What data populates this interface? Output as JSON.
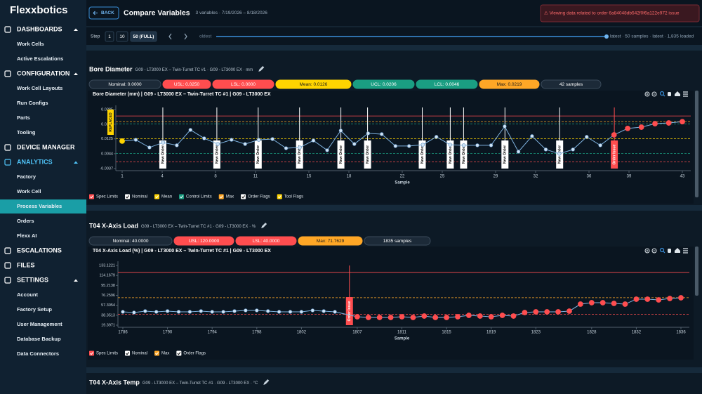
{
  "sidebar": {
    "logo": "Flexxbotics",
    "sections": [
      {
        "label": "DASHBOARDS",
        "items": [
          "Work Cells",
          "Active Escalations"
        ]
      },
      {
        "label": "CONFIGURATION",
        "items": [
          "Work Cell Layouts",
          "Run Configs",
          "Parts",
          "Tooling"
        ]
      },
      {
        "label": "DEVICE MANAGER"
      },
      {
        "label": "ANALYTICS",
        "color": "#4fc3f7",
        "items": [
          "Factory",
          "Work Cell",
          "Process Variables",
          "Orders",
          "Flexx AI"
        ],
        "active_index": 2
      },
      {
        "label": "ESCALATIONS"
      },
      {
        "label": "FILES"
      },
      {
        "label": "SETTINGS",
        "items": [
          "Account",
          "Factory Setup",
          "User Management",
          "Database Backup",
          "Data Connectors"
        ]
      }
    ]
  },
  "header": {
    "back": "BACK",
    "title": "Compare Variables",
    "subtitle": "3 variables · 7/19/2026 – 8/18/2026",
    "alert": "⚠ Viewing data related to order 6a84048db542f0f6a122e972 issue"
  },
  "controls": {
    "step_label": "Step",
    "step_options": [
      "1",
      "10",
      "50 (FULL)"
    ],
    "active_step": 2,
    "range_start": "oldest",
    "range_end": "latest · 50 samples · latest · 1,835 loaded"
  },
  "panels": [
    {
      "title": "Bore Diameter",
      "subtitle": "G09 - LT3000 EX – Twin-Turret TC #1 · G09 - LT3000 EX · mm",
      "pills": [
        {
          "label": "Nominal: 0.0000",
          "color": "#1c2a38"
        },
        {
          "label": "USL: 0.0250",
          "color": "#ff4d4f"
        },
        {
          "label": "LSL: 0.0000",
          "color": "#ff4d4f"
        },
        {
          "label": "Mean: 0.0126",
          "color": "#ffd400"
        },
        {
          "label": "UCL: 0.0206",
          "color": "#1a9e82"
        },
        {
          "label": "LCL: 0.0046",
          "color": "#1a9e82"
        },
        {
          "label": "Max: 0.0219",
          "color": "#ffa726"
        },
        {
          "label": "42 samples",
          "color": "#1c2a38"
        }
      ]
    },
    {
      "title": "T04 X-Axis Load",
      "subtitle": "G09 - LT3000 EX – Twin-Turret TC #1 · G09 - LT3000 EX · %",
      "pills": [
        {
          "label": "Nominal: 40.0000",
          "color": "#1c2a38"
        },
        {
          "label": "USL: 120.0000",
          "color": "#ff4d4f"
        },
        {
          "label": "LSL: 40.0000",
          "color": "#ff4d4f"
        },
        {
          "label": "Max: 71.7629",
          "color": "#ffa726"
        },
        {
          "label": "1835 samples",
          "color": "#1c2a38"
        }
      ]
    },
    {
      "title": "T04 X-Axis Temp",
      "subtitle": "G09 - LT3000 EX – Twin-Turret TC #1 · G09 - LT3000 EX · °C"
    }
  ],
  "chart_data": [
    {
      "type": "line",
      "title": "Bore Diameter (mm) | G09 - LT3000 EX – Twin-Turret TC #1 | G09 - LT3000 EX",
      "xlabel": "Sample",
      "xlim": [
        1,
        43
      ],
      "xticks": [
        1,
        4,
        8,
        11,
        15,
        18,
        22,
        25,
        29,
        32,
        36,
        39,
        43
      ],
      "ylim": [
        -0.0037,
        0.0285
      ],
      "yticks": [
        0.0285,
        0.0205,
        0.0125,
        0.0044,
        -0.0037
      ],
      "x": [
        1,
        2.02,
        3.05,
        4.07,
        5.1,
        6.12,
        7.15,
        8.17,
        9.2,
        10.22,
        11.24,
        12.27,
        13.29,
        14.32,
        15.34,
        16.37,
        17.39,
        18.41,
        19.44,
        20.46,
        21.49,
        22.51,
        23.54,
        24.56,
        25.59,
        26.61,
        27.63,
        28.66,
        29.68,
        30.71,
        31.73,
        32.76,
        33.78,
        34.8,
        35.83,
        36.85,
        37.88,
        38.9,
        39.93,
        40.95,
        41.98,
        43
      ],
      "series": [
        {
          "color": "#7fb3e0",
          "values": [
            0.0113,
            0.012,
            0.0078,
            0.0105,
            0.009,
            0.0174,
            0.0128,
            0.0097,
            0.012,
            0.0097,
            0.012,
            0.0124,
            0.0074,
            0.0078,
            0.0116,
            0.0063,
            0.017,
            0.0097,
            0.0155,
            0.0151,
            0.0086,
            0.0086,
            0.0093,
            0.0136,
            0.0093,
            0.009,
            0.009,
            0.009,
            0.0193,
            0.0055,
            0.014,
            0.0067,
            0.0044,
            0.0067,
            0.0136,
            0.009,
            0.0147,
            0.0182,
            0.0189,
            0.0208,
            0.0212,
            0.0219
          ],
          "point_colors": [
            "#ffd400",
            "#cfe3f5",
            "#cfe3f5",
            "#cfe3f5",
            "#cfe3f5",
            "#cfe3f5",
            "#cfe3f5",
            "#cfe3f5",
            "#cfe3f5",
            "#cfe3f5",
            "#cfe3f5",
            "#cfe3f5",
            "#cfe3f5",
            "#cfe3f5",
            "#cfe3f5",
            "#cfe3f5",
            "#cfe3f5",
            "#cfe3f5",
            "#cfe3f5",
            "#cfe3f5",
            "#cfe3f5",
            "#cfe3f5",
            "#cfe3f5",
            "#cfe3f5",
            "#cfe3f5",
            "#cfe3f5",
            "#cfe3f5",
            "#cfe3f5",
            "#cfe3f5",
            "#cfe3f5",
            "#cfe3f5",
            "#cfe3f5",
            "#cfe3f5",
            "#cfe3f5",
            "#cfe3f5",
            "#cfe3f5",
            "#ff4d4f",
            "#ff4d4f",
            "#ff4d4f",
            "#ff4d4f",
            "#ff4d4f",
            "#ff4d4f"
          ]
        }
      ],
      "reference_lines": [
        {
          "value": 0.025,
          "color": "#ff4d4f",
          "dashed": false
        },
        {
          "value": 0.0,
          "color": "#ff4d4f",
          "dashed": true
        },
        {
          "value": 0.0206,
          "color": "#1a9e82",
          "dashed": true
        },
        {
          "value": 0.0046,
          "color": "#1a9e82",
          "dashed": true
        },
        {
          "value": 0.0126,
          "color": "#ffd400",
          "dashed": true
        },
        {
          "value": 0.0219,
          "color": "#ffa726",
          "dashed": true
        }
      ],
      "flags": [
        {
          "x": 4.05,
          "label": "New Order",
          "color": "#ffffff"
        },
        {
          "x": 8.1,
          "label": "New Order",
          "color": "#ffffff"
        },
        {
          "x": 11.2,
          "label": "New Order",
          "color": "#ffffff"
        },
        {
          "x": 14.3,
          "label": "New Order",
          "color": "#ffffff"
        },
        {
          "x": 17.4,
          "label": "New Order",
          "color": "#ffffff"
        },
        {
          "x": 19.4,
          "label": "New Order",
          "color": "#ffffff"
        },
        {
          "x": 23.5,
          "label": "New Order",
          "color": "#ffffff"
        },
        {
          "x": 25.6,
          "label": "New Order",
          "color": "#ffffff"
        },
        {
          "x": 26.6,
          "label": "New Order",
          "color": "#ffffff"
        },
        {
          "x": 29.7,
          "label": "New Order",
          "color": "#ffffff"
        },
        {
          "x": 33.8,
          "label": "New Order",
          "color": "#ffffff"
        },
        {
          "x": 37.9,
          "label": "Order Issue",
          "color": "#ff4d4f"
        }
      ],
      "tool_flag": {
        "label": "REPLACED",
        "color": "#ffd400"
      },
      "legend": [
        {
          "label": "Spec Limits",
          "color": "#ff4d4f"
        },
        {
          "label": "Nominal",
          "color": "#ffffff"
        },
        {
          "label": "Mean",
          "color": "#ffd400"
        },
        {
          "label": "Control Limits",
          "color": "#1a9e82"
        },
        {
          "label": "Max",
          "color": "#ffa726"
        },
        {
          "label": "Order Flags",
          "color": "#ffffff"
        },
        {
          "label": "Tool Flags",
          "color": "#ffd400"
        }
      ]
    },
    {
      "type": "line",
      "title": "T04 X-Axis Load (%) | G09 - LT3000 EX – Twin-Turret TC #1 | G09 - LT3000 EX",
      "xlabel": "Sample",
      "xlim": [
        1786,
        1836
      ],
      "xticks": [
        1786,
        1790,
        1794,
        1798,
        1802,
        1807,
        1811,
        1815,
        1819,
        1823,
        1828,
        1832,
        1836
      ],
      "ylim": [
        19.3971,
        133.1221
      ],
      "yticks": [
        133.1221,
        114.1679,
        95.2138,
        76.2596,
        57.3054,
        38.3513,
        19.3971
      ],
      "x": [
        1786,
        1787,
        1788,
        1789,
        1790,
        1791,
        1792,
        1793,
        1794,
        1795,
        1796,
        1797,
        1798,
        1799,
        1800,
        1801,
        1802,
        1803,
        1804,
        1805,
        1807,
        1808,
        1809,
        1810,
        1811,
        1812,
        1813,
        1814,
        1815,
        1816,
        1817,
        1818,
        1819,
        1820,
        1821,
        1822,
        1823,
        1824,
        1825,
        1826,
        1827,
        1828,
        1829,
        1830,
        1831,
        1832,
        1833,
        1834,
        1835,
        1836
      ],
      "series": [
        {
          "color": "#7fb3e0",
          "values": [
            44.8,
            43.5,
            46.2,
            44.8,
            46.2,
            44.8,
            44.8,
            46.2,
            44.8,
            44.8,
            46.2,
            47.5,
            47.5,
            46.2,
            44.8,
            44.8,
            44.8,
            47.5,
            46.2,
            44.8,
            35.5,
            34.1,
            34.1,
            34.1,
            35.5,
            34.1,
            36.8,
            34.1,
            34.1,
            35.5,
            38.1,
            36.8,
            35.5,
            38.1,
            36.8,
            43.5,
            44.8,
            44.8,
            44.8,
            46.2,
            59.5,
            62.2,
            62.2,
            60.9,
            59.5,
            68.9,
            68.9,
            67.6,
            70.2,
            71.6
          ],
          "point_colors": [
            "#cfe3f5",
            "#cfe3f5",
            "#cfe3f5",
            "#cfe3f5",
            "#cfe3f5",
            "#cfe3f5",
            "#cfe3f5",
            "#cfe3f5",
            "#cfe3f5",
            "#cfe3f5",
            "#cfe3f5",
            "#cfe3f5",
            "#cfe3f5",
            "#cfe3f5",
            "#cfe3f5",
            "#cfe3f5",
            "#cfe3f5",
            "#cfe3f5",
            "#cfe3f5",
            "#cfe3f5",
            "#ff4d4f",
            "#ff4d4f",
            "#ff4d4f",
            "#ff4d4f",
            "#ff4d4f",
            "#ff4d4f",
            "#ff4d4f",
            "#ff4d4f",
            "#ff4d4f",
            "#ff4d4f",
            "#ff4d4f",
            "#ff4d4f",
            "#ff4d4f",
            "#ff4d4f",
            "#ff4d4f",
            "#ff4d4f",
            "#ff4d4f",
            "#ff4d4f",
            "#ff4d4f",
            "#ff4d4f",
            "#ff4d4f",
            "#ff4d4f",
            "#ff4d4f",
            "#ff4d4f",
            "#ff4d4f",
            "#ff4d4f",
            "#ff4d4f",
            "#ff4d4f",
            "#ff4d4f",
            "#ff4d4f"
          ]
        }
      ],
      "reference_lines": [
        {
          "value": 120,
          "color": "#ff4d4f",
          "dashed": false
        },
        {
          "value": 40,
          "color": "#ff4d4f",
          "dashed": true
        },
        {
          "value": 71.7629,
          "color": "#ffa726",
          "dashed": true
        }
      ],
      "flags": [
        {
          "x": 1806.3,
          "label": "Order Issue",
          "color": "#ff4d4f"
        }
      ],
      "legend": [
        {
          "label": "Spec Limits",
          "color": "#ff4d4f"
        },
        {
          "label": "Nominal",
          "color": "#ffffff"
        },
        {
          "label": "Max",
          "color": "#ffa726"
        },
        {
          "label": "Order Flags",
          "color": "#ffffff"
        }
      ]
    }
  ]
}
